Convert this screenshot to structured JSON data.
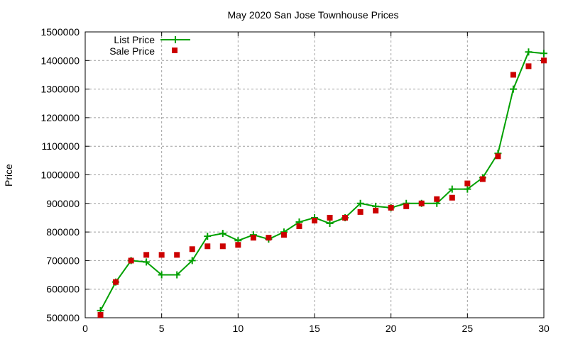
{
  "chart_data": {
    "type": "line",
    "title": "May 2020 San Jose Townhouse Prices",
    "xlabel": "",
    "ylabel": "Price",
    "xlim": [
      0,
      30
    ],
    "ylim": [
      500000,
      1500000
    ],
    "xticks": [
      0,
      5,
      10,
      15,
      20,
      25,
      30
    ],
    "yticks": [
      500000,
      600000,
      700000,
      800000,
      900000,
      1000000,
      1100000,
      1200000,
      1300000,
      1400000,
      1500000
    ],
    "grid": true,
    "legend_position": "top-left",
    "x": [
      1,
      2,
      3,
      4,
      5,
      6,
      7,
      8,
      9,
      10,
      11,
      12,
      13,
      14,
      15,
      16,
      17,
      18,
      19,
      20,
      21,
      22,
      23,
      24,
      25,
      26,
      27,
      28,
      29,
      30
    ],
    "series": [
      {
        "name": "List Price",
        "style": "linespoints",
        "color": "#00a000",
        "values": [
          525000,
          625000,
          700000,
          695000,
          650000,
          650000,
          700000,
          785000,
          795000,
          770000,
          790000,
          775000,
          800000,
          835000,
          850000,
          830000,
          850000,
          900000,
          890000,
          885000,
          900000,
          900000,
          900000,
          950000,
          950000,
          990000,
          1075000,
          1300000,
          1430000,
          1425000
        ]
      },
      {
        "name": "Sale Price",
        "style": "points",
        "color": "#cc0000",
        "values": [
          510000,
          625000,
          700000,
          720000,
          720000,
          720000,
          740000,
          750000,
          750000,
          755000,
          780000,
          780000,
          790000,
          820000,
          840000,
          850000,
          850000,
          870000,
          875000,
          885000,
          890000,
          900000,
          915000,
          920000,
          970000,
          985000,
          1065000,
          1350000,
          1380000,
          1400000
        ]
      }
    ]
  }
}
